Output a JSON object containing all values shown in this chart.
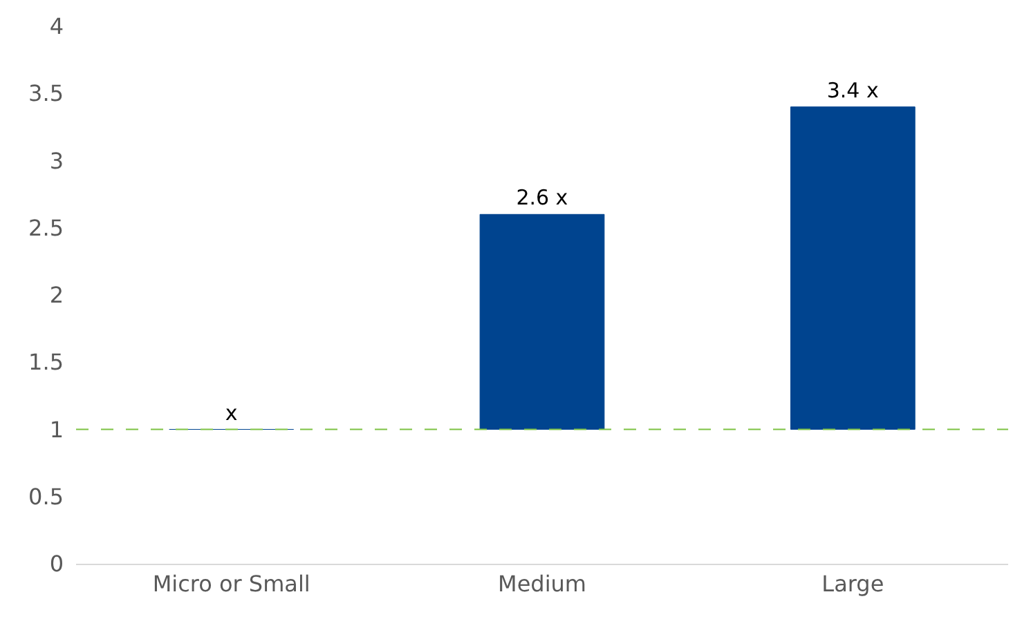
{
  "chart_data": {
    "type": "bar",
    "categories": [
      "Micro or Small",
      "Medium",
      "Large"
    ],
    "values": [
      0,
      1.6,
      2.4
    ],
    "base": [
      1,
      1,
      1
    ],
    "value_labels": [
      "x",
      "2.6 x",
      "3.4 x"
    ],
    "color": "#00448f",
    "ylim": [
      0,
      4
    ],
    "yticks": [
      0,
      0.5,
      1,
      1.5,
      2,
      2.5,
      3,
      3.5,
      4
    ],
    "ref_lines": [
      {
        "axis": "y",
        "value": 1,
        "color": "#7cc242",
        "line_style": "dashed"
      }
    ]
  }
}
